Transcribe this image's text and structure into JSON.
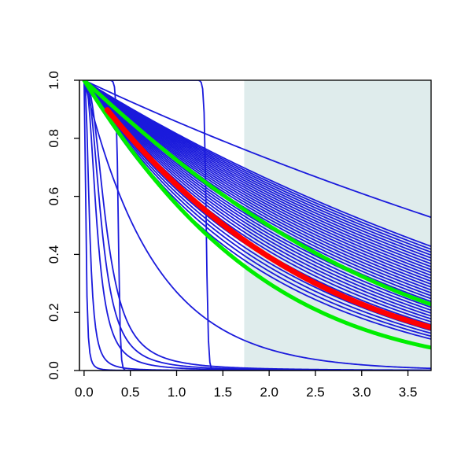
{
  "chart_data": {
    "type": "line",
    "title": "",
    "xlabel": "",
    "ylabel": "",
    "xlim": [
      -0.05,
      3.75
    ],
    "ylim": [
      0.0,
      1.0
    ],
    "x_ticks": [
      "0.0",
      "0.5",
      "1.0",
      "1.5",
      "2.0",
      "2.5",
      "3.0",
      "3.5"
    ],
    "y_ticks": [
      "0.0",
      "0.2",
      "0.4",
      "0.6",
      "0.8",
      "1.0"
    ],
    "grid": false,
    "legend": "none",
    "shaded_region": {
      "x_from": 1.73,
      "x_to": 3.75,
      "color": "#dfecec"
    },
    "colors": {
      "blue": "#1a1adc",
      "red": "#ff0000",
      "green": "#00ee00",
      "axis": "#000000"
    },
    "series_blue_ends_at_x_3_73": [
      0.53,
      0.43,
      0.42,
      0.41,
      0.4,
      0.39,
      0.38,
      0.37,
      0.36,
      0.35,
      0.34,
      0.33,
      0.32,
      0.31,
      0.3,
      0.29,
      0.28,
      0.27,
      0.26,
      0.25,
      0.24,
      0.23,
      0.22,
      0.21,
      0.2,
      0.19,
      0.18,
      0.17,
      0.16,
      0.15,
      0.14,
      0.13,
      0.12,
      0.11
    ],
    "series_steep_blue": [
      {
        "x_at_half": 0.02,
        "y_end": 0.0
      },
      {
        "x_at_half": 0.06,
        "y_end": 0.0
      },
      {
        "x_at_half": 0.14,
        "y_end": 0.0
      },
      {
        "x_at_half": 0.19,
        "y_end": 0.0
      },
      {
        "x_at_half": 0.24,
        "y_end": 0.0
      }
    ],
    "series_step_blue": [
      {
        "step_x": 0.37,
        "start_x": 0.26
      },
      {
        "step_x": 1.32,
        "start_x": 1.25
      }
    ],
    "series_exponential_blue": {
      "x_at_half": 0.53,
      "y_at_x_3_73": 0.005
    },
    "series_red": {
      "y_at_x_0_25": 0.93,
      "y_at_x_1_73": 0.48,
      "y_at_x_3_73": 0.15
    },
    "series_green": [
      {
        "y_at_x_1_73": 0.6,
        "y_at_x_3_73": 0.23
      },
      {
        "y_at_x_1_73": 0.41,
        "y_at_x_3_73": 0.08
      }
    ]
  }
}
